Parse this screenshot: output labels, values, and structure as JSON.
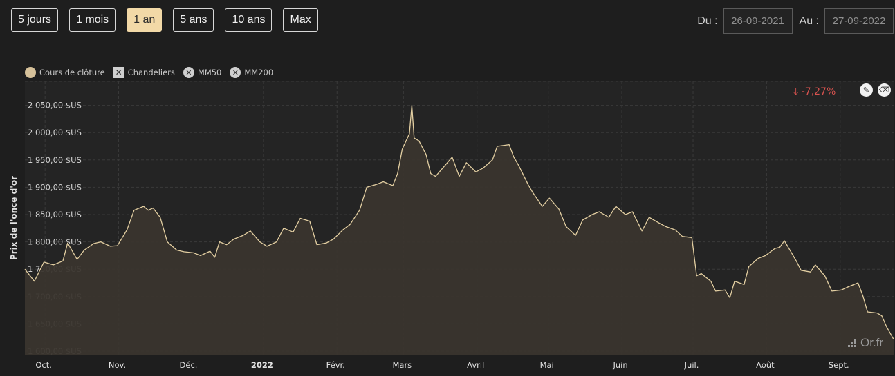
{
  "range_buttons": [
    {
      "label": "5 jours",
      "active": false
    },
    {
      "label": "1 mois",
      "active": false
    },
    {
      "label": "1 an",
      "active": true
    },
    {
      "label": "5 ans",
      "active": false
    },
    {
      "label": "10 ans",
      "active": false
    },
    {
      "label": "Max",
      "active": false
    }
  ],
  "dates": {
    "from_label": "Du :",
    "from_value": "26-09-2021",
    "to_label": "Au :",
    "to_value": "27-09-2022"
  },
  "legend": [
    {
      "label": "Cours de clôture",
      "icon": "filled-circle",
      "enabled": true
    },
    {
      "label": "Chandeliers",
      "icon": "x-square",
      "enabled": false
    },
    {
      "label": "MM50",
      "icon": "x-circle",
      "enabled": false
    },
    {
      "label": "MM200",
      "icon": "x-circle",
      "enabled": false
    }
  ],
  "change": {
    "arrow": "🡓",
    "value": "-7,27%",
    "color": "#d9534f"
  },
  "watermark": "Or.fr",
  "colors": {
    "line": "#e3cfa2",
    "area": "#3a352e",
    "grid": "#3a3a3a",
    "active_button": "#f2d9a7"
  },
  "chart_data": {
    "type": "area",
    "ylabel": "Prix de l'once d'or",
    "ylim": [
      1600,
      2100
    ],
    "y_ticks": [
      1600,
      1650,
      1700,
      1750,
      1800,
      1850,
      1900,
      1950,
      2000,
      2050
    ],
    "y_tick_labels": [
      "1 600,00 $US",
      "1 650,00 $US",
      "1 700,00 $US",
      "1 750,00 $US",
      "1 800,00 $US",
      "1 850,00 $US",
      "1 900,00 $US",
      "1 950,00 $US",
      "2 000,00 $US",
      "2 050,00 $US"
    ],
    "x_start": "2021-09-26",
    "x_end": "2022-09-27",
    "x_ticks": [
      {
        "label": "Oct.",
        "date": "2021-10-01",
        "bold": false
      },
      {
        "label": "Nov.",
        "date": "2021-11-01",
        "bold": false
      },
      {
        "label": "Déc.",
        "date": "2021-12-01",
        "bold": false
      },
      {
        "label": "2022",
        "date": "2022-01-01",
        "bold": true
      },
      {
        "label": "Févr.",
        "date": "2022-02-01",
        "bold": false
      },
      {
        "label": "Mars",
        "date": "2022-03-01",
        "bold": false
      },
      {
        "label": "Avril",
        "date": "2022-04-01",
        "bold": false
      },
      {
        "label": "Mai",
        "date": "2022-05-01",
        "bold": false
      },
      {
        "label": "Juin",
        "date": "2022-06-01",
        "bold": false
      },
      {
        "label": "Juil.",
        "date": "2022-07-01",
        "bold": false
      },
      {
        "label": "Août",
        "date": "2022-08-01",
        "bold": false
      },
      {
        "label": "Sept.",
        "date": "2022-09-01",
        "bold": false
      }
    ],
    "series": [
      {
        "name": "Cours de clôture",
        "points": [
          [
            "2021-09-26",
            1750
          ],
          [
            "2021-09-30",
            1728
          ],
          [
            "2021-10-04",
            1763
          ],
          [
            "2021-10-08",
            1758
          ],
          [
            "2021-10-12",
            1765
          ],
          [
            "2021-10-14",
            1798
          ],
          [
            "2021-10-18",
            1768
          ],
          [
            "2021-10-21",
            1785
          ],
          [
            "2021-10-25",
            1797
          ],
          [
            "2021-10-28",
            1800
          ],
          [
            "2021-11-01",
            1792
          ],
          [
            "2021-11-04",
            1793
          ],
          [
            "2021-11-08",
            1822
          ],
          [
            "2021-11-11",
            1858
          ],
          [
            "2021-11-15",
            1865
          ],
          [
            "2021-11-17",
            1858
          ],
          [
            "2021-11-19",
            1862
          ],
          [
            "2021-11-22",
            1845
          ],
          [
            "2021-11-25",
            1800
          ],
          [
            "2021-11-29",
            1785
          ],
          [
            "2021-12-02",
            1782
          ],
          [
            "2021-12-06",
            1780
          ],
          [
            "2021-12-09",
            1775
          ],
          [
            "2021-12-13",
            1783
          ],
          [
            "2021-12-15",
            1772
          ],
          [
            "2021-12-17",
            1800
          ],
          [
            "2021-12-20",
            1795
          ],
          [
            "2021-12-23",
            1805
          ],
          [
            "2021-12-27",
            1812
          ],
          [
            "2021-12-30",
            1820
          ],
          [
            "2022-01-03",
            1800
          ],
          [
            "2022-01-06",
            1792
          ],
          [
            "2022-01-10",
            1800
          ],
          [
            "2022-01-13",
            1825
          ],
          [
            "2022-01-17",
            1818
          ],
          [
            "2022-01-20",
            1843
          ],
          [
            "2022-01-24",
            1838
          ],
          [
            "2022-01-27",
            1795
          ],
          [
            "2022-01-31",
            1798
          ],
          [
            "2022-02-03",
            1805
          ],
          [
            "2022-02-07",
            1822
          ],
          [
            "2022-02-10",
            1832
          ],
          [
            "2022-02-14",
            1858
          ],
          [
            "2022-02-17",
            1900
          ],
          [
            "2022-02-21",
            1905
          ],
          [
            "2022-02-24",
            1910
          ],
          [
            "2022-02-28",
            1903
          ],
          [
            "2022-03-02",
            1925
          ],
          [
            "2022-03-04",
            1970
          ],
          [
            "2022-03-07",
            1998
          ],
          [
            "2022-03-08",
            2050
          ],
          [
            "2022-03-09",
            1990
          ],
          [
            "2022-03-11",
            1985
          ],
          [
            "2022-03-14",
            1960
          ],
          [
            "2022-03-16",
            1925
          ],
          [
            "2022-03-18",
            1920
          ],
          [
            "2022-03-21",
            1935
          ],
          [
            "2022-03-23",
            1945
          ],
          [
            "2022-03-25",
            1955
          ],
          [
            "2022-03-28",
            1920
          ],
          [
            "2022-03-31",
            1945
          ],
          [
            "2022-04-04",
            1928
          ],
          [
            "2022-04-07",
            1935
          ],
          [
            "2022-04-11",
            1950
          ],
          [
            "2022-04-13",
            1975
          ],
          [
            "2022-04-18",
            1978
          ],
          [
            "2022-04-20",
            1955
          ],
          [
            "2022-04-22",
            1940
          ],
          [
            "2022-04-26",
            1905
          ],
          [
            "2022-04-28",
            1890
          ],
          [
            "2022-05-02",
            1865
          ],
          [
            "2022-05-05",
            1880
          ],
          [
            "2022-05-09",
            1860
          ],
          [
            "2022-05-12",
            1828
          ],
          [
            "2022-05-16",
            1812
          ],
          [
            "2022-05-19",
            1840
          ],
          [
            "2022-05-23",
            1850
          ],
          [
            "2022-05-26",
            1855
          ],
          [
            "2022-05-30",
            1845
          ],
          [
            "2022-06-02",
            1865
          ],
          [
            "2022-06-06",
            1850
          ],
          [
            "2022-06-09",
            1855
          ],
          [
            "2022-06-13",
            1820
          ],
          [
            "2022-06-16",
            1845
          ],
          [
            "2022-06-20",
            1835
          ],
          [
            "2022-06-23",
            1828
          ],
          [
            "2022-06-27",
            1822
          ],
          [
            "2022-06-30",
            1810
          ],
          [
            "2022-07-04",
            1808
          ],
          [
            "2022-07-06",
            1738
          ],
          [
            "2022-07-08",
            1742
          ],
          [
            "2022-07-12",
            1728
          ],
          [
            "2022-07-14",
            1710
          ],
          [
            "2022-07-18",
            1712
          ],
          [
            "2022-07-20",
            1698
          ],
          [
            "2022-07-22",
            1728
          ],
          [
            "2022-07-26",
            1722
          ],
          [
            "2022-07-28",
            1755
          ],
          [
            "2022-08-01",
            1770
          ],
          [
            "2022-08-04",
            1775
          ],
          [
            "2022-08-08",
            1788
          ],
          [
            "2022-08-10",
            1790
          ],
          [
            "2022-08-12",
            1802
          ],
          [
            "2022-08-15",
            1780
          ],
          [
            "2022-08-17",
            1765
          ],
          [
            "2022-08-19",
            1748
          ],
          [
            "2022-08-23",
            1745
          ],
          [
            "2022-08-25",
            1758
          ],
          [
            "2022-08-29",
            1738
          ],
          [
            "2022-09-01",
            1710
          ],
          [
            "2022-09-05",
            1712
          ],
          [
            "2022-09-08",
            1718
          ],
          [
            "2022-09-12",
            1725
          ],
          [
            "2022-09-14",
            1702
          ],
          [
            "2022-09-16",
            1672
          ],
          [
            "2022-09-20",
            1670
          ],
          [
            "2022-09-22",
            1665
          ],
          [
            "2022-09-24",
            1645
          ],
          [
            "2022-09-27",
            1622
          ]
        ]
      }
    ]
  }
}
